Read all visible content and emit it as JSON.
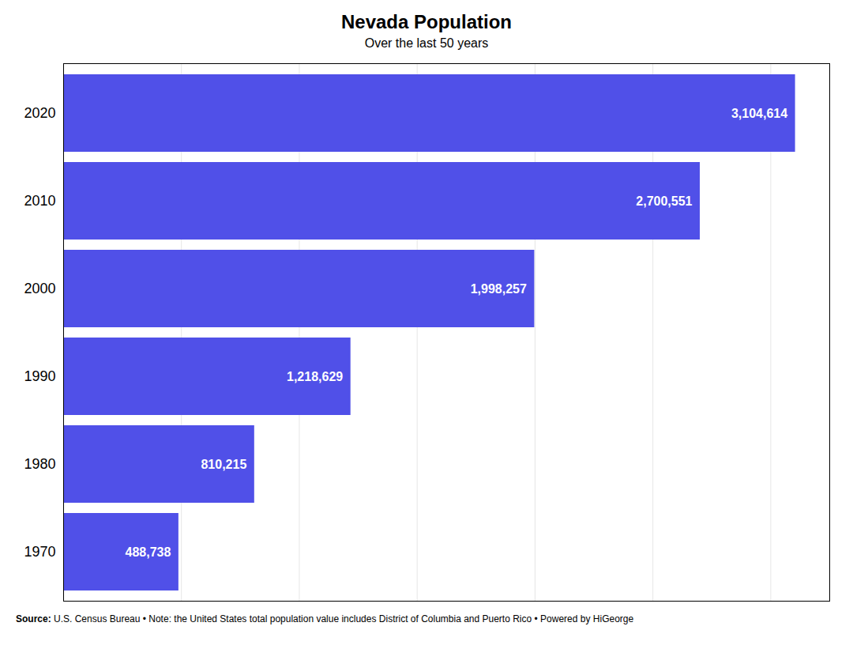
{
  "chart_data": {
    "type": "bar",
    "orientation": "horizontal",
    "title": "Nevada Population",
    "subtitle": "Over the last 50 years",
    "categories": [
      "2020",
      "2010",
      "2000",
      "1990",
      "1980",
      "1970"
    ],
    "values": [
      3104614,
      2700551,
      1998257,
      1218629,
      810215,
      488738
    ],
    "value_labels": [
      "3,104,614",
      "2,700,551",
      "1,998,257",
      "1,218,629",
      "810,215",
      "488,738"
    ],
    "data_labels": true,
    "color": "#5050e8",
    "xlim": [
      0,
      3250000
    ],
    "xticks": [
      0,
      500000,
      1000000,
      1500000,
      2000000,
      2500000,
      3000000
    ],
    "grid": true,
    "tick_labels": "y",
    "footer": [
      "Source:",
      " U.S. Census Bureau • Note: the United States total population value includes District of Columbia and Puerto Rico • ",
      "Powered by HiGeorge"
    ]
  }
}
